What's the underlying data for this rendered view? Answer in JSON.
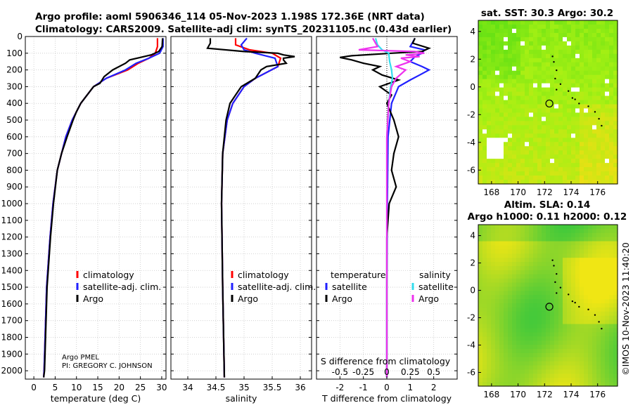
{
  "header": {
    "title_line1": "Argo profile: aoml 5906346_114 05-Nov-2023 1.198S 172.36E (NRT data)",
    "title_line2": "Climatology: CARS2009. Satellite-adj clim: synTS_20231105.nc (0.43d earlier)"
  },
  "colors": {
    "argo": "#000000",
    "climatology": "#ff0000",
    "satellite": "#2020ff",
    "satellite_s": "#33ddee",
    "argo_s": "#ee33ee"
  },
  "chart_data": [
    {
      "type": "line",
      "id": "temperature",
      "xlabel": "temperature (deg C)",
      "ylabel": "",
      "xlim": [
        -2,
        31
      ],
      "ylim": [
        2050,
        0
      ],
      "grid": true,
      "xticks": [
        0,
        5,
        10,
        15,
        20,
        25,
        30
      ],
      "yticks": [
        0,
        100,
        200,
        300,
        400,
        500,
        600,
        700,
        800,
        900,
        1000,
        1100,
        1200,
        1300,
        1400,
        1500,
        1600,
        1700,
        1800,
        1900,
        2000
      ],
      "legend": [
        "climatology",
        "satellite-adj. clim.",
        "Argo"
      ],
      "series": [
        {
          "name": "climatology",
          "depth": [
            10,
            60,
            100,
            130,
            160,
            200,
            250,
            300,
            400,
            500,
            600,
            800,
            1000,
            1200,
            1500,
            2000,
            2040
          ],
          "values": [
            29.0,
            29.0,
            28.5,
            27.0,
            24.5,
            22.0,
            17.0,
            14.0,
            11.0,
            9.0,
            7.5,
            5.5,
            4.5,
            3.8,
            3.0,
            2.4,
            2.3
          ]
        },
        {
          "name": "satellite-adj. clim.",
          "depth": [
            10,
            60,
            100,
            130,
            160,
            200,
            250,
            300,
            400,
            500,
            600,
            800,
            1000,
            1200,
            1500,
            2000,
            2040
          ],
          "values": [
            30.3,
            30.3,
            29.5,
            27.0,
            24.0,
            21.5,
            17.0,
            14.0,
            11.0,
            9.0,
            7.5,
            5.5,
            4.5,
            3.8,
            3.0,
            2.4,
            2.3
          ]
        },
        {
          "name": "Argo",
          "depth": [
            10,
            60,
            90,
            110,
            125,
            140,
            160,
            200,
            240,
            280,
            300,
            350,
            400,
            450,
            500,
            600,
            700,
            800,
            1000,
            1200,
            1500,
            2000,
            2040
          ],
          "values": [
            30.2,
            30.1,
            29.3,
            27.5,
            25.0,
            22.5,
            21.5,
            18.5,
            16.5,
            15.5,
            14.0,
            12.5,
            11.0,
            10.0,
            9.2,
            7.8,
            6.5,
            5.5,
            4.6,
            3.9,
            3.1,
            2.5,
            2.3
          ]
        }
      ]
    },
    {
      "type": "line",
      "id": "salinity",
      "xlabel": "salinity",
      "ylabel": "",
      "xlim": [
        33.7,
        36.2
      ],
      "ylim": [
        2050,
        0
      ],
      "grid": true,
      "xticks": [
        34,
        34.5,
        35,
        35.5,
        36
      ],
      "legend": [
        "climatology",
        "satellite-adj. clim.",
        "Argo"
      ],
      "series": [
        {
          "name": "climatology",
          "depth": [
            10,
            50,
            80,
            100,
            130,
            180,
            250,
            300,
            400,
            500,
            700,
            1000,
            1500,
            2040
          ],
          "values": [
            34.85,
            34.85,
            35.1,
            35.5,
            35.65,
            35.6,
            35.2,
            35.0,
            34.8,
            34.7,
            34.62,
            34.6,
            34.62,
            34.65
          ]
        },
        {
          "name": "satellite-adj. clim.",
          "depth": [
            10,
            50,
            80,
            100,
            130,
            180,
            250,
            300,
            400,
            500,
            700,
            1000,
            1500,
            2040
          ],
          "values": [
            35.05,
            34.95,
            35.0,
            35.2,
            35.55,
            35.6,
            35.2,
            35.0,
            34.8,
            34.7,
            34.62,
            34.6,
            34.62,
            34.65
          ]
        },
        {
          "name": "Argo",
          "depth": [
            10,
            40,
            70,
            90,
            100,
            110,
            120,
            130,
            140,
            160,
            180,
            200,
            250,
            300,
            350,
            400,
            500,
            700,
            1000,
            1500,
            2040
          ],
          "values": [
            34.4,
            34.4,
            34.35,
            35.0,
            35.6,
            35.7,
            35.9,
            35.7,
            35.7,
            35.75,
            35.4,
            35.3,
            35.2,
            34.95,
            34.85,
            34.75,
            34.68,
            34.62,
            34.6,
            34.62,
            34.65
          ]
        }
      ]
    },
    {
      "type": "line",
      "id": "differences",
      "xlabel": "T difference from climatology",
      "xlabel_top": "S difference from climatology",
      "xlim": [
        -3,
        3
      ],
      "ylim": [
        2050,
        0
      ],
      "grid": true,
      "xticks": [
        -2,
        -1,
        0,
        1,
        2
      ],
      "xticks_top": [
        -0.5,
        -0.25,
        0,
        0.25,
        0.5
      ],
      "legend_titles": [
        "temperature",
        "salinity"
      ],
      "legend": [
        "satellite",
        "Argo",
        "satellite",
        "Argo"
      ],
      "series": [
        {
          "name": "temperature satellite",
          "depth": [
            10,
            60,
            80,
            100,
            120,
            150,
            180,
            200,
            230,
            260,
            300,
            400,
            600,
            1000,
            1500,
            2040
          ],
          "values": [
            1.2,
            1.0,
            1.6,
            1.5,
            1.2,
            1.0,
            1.5,
            1.8,
            1.4,
            1.0,
            0.5,
            0.2,
            0.05,
            0.02,
            0.0,
            0.0
          ]
        },
        {
          "name": "temperature Argo",
          "depth": [
            10,
            40,
            70,
            90,
            100,
            115,
            125,
            140,
            160,
            180,
            200,
            230,
            260,
            300,
            350,
            400,
            500,
            600,
            700,
            800,
            900,
            1000,
            1200,
            1500,
            2040
          ],
          "values": [
            1.2,
            1.1,
            1.8,
            1.5,
            0.2,
            -1.5,
            -2.0,
            -1.5,
            -1.0,
            -0.3,
            -0.6,
            -0.2,
            0.5,
            -0.3,
            0.2,
            0.0,
            0.3,
            0.5,
            0.3,
            0.2,
            0.4,
            0.1,
            0.0,
            0.0,
            0.0
          ]
        },
        {
          "name": "salinity satellite",
          "depth": [
            10,
            50,
            80,
            100,
            150,
            200,
            250,
            300,
            400,
            600,
            1000,
            1500,
            2040
          ],
          "values": [
            -0.12,
            -0.1,
            -0.05,
            0.02,
            0.03,
            0.05,
            0.06,
            0.04,
            0.02,
            0.0,
            0.0,
            0.0,
            0.0
          ]
        },
        {
          "name": "salinity Argo",
          "depth": [
            10,
            60,
            80,
            90,
            100,
            110,
            120,
            130,
            150,
            180,
            200,
            250,
            300,
            400,
            600,
            1000,
            1500,
            2040
          ],
          "values": [
            -0.15,
            -0.1,
            -0.3,
            0.3,
            0.4,
            0.2,
            0.35,
            0.15,
            0.25,
            0.1,
            0.2,
            0.1,
            0.05,
            0.02,
            0.0,
            0.0,
            0.0,
            0.0
          ]
        }
      ]
    },
    {
      "type": "heatmap",
      "id": "sst_map",
      "title": "sat. SST: 30.3 Argo: 30.2",
      "xlim": [
        167,
        177.5
      ],
      "ylim": [
        -7,
        4.8
      ],
      "xticks": [
        168,
        170,
        172,
        174,
        176
      ],
      "yticks": [
        -6,
        -4,
        -2,
        0,
        2,
        4
      ],
      "marker": {
        "lon": 172.36,
        "lat": -1.198
      }
    },
    {
      "type": "heatmap",
      "id": "sla_map",
      "title": "Altim. SLA: 0.14",
      "subtitle": "Argo h1000: 0.11 h2000: 0.12",
      "xlim": [
        167,
        177.5
      ],
      "ylim": [
        -7,
        4.8
      ],
      "xticks": [
        168,
        170,
        172,
        174,
        176
      ],
      "yticks": [
        -6,
        -4,
        -2,
        0,
        2,
        4
      ],
      "marker": {
        "lon": 172.36,
        "lat": -1.198
      }
    }
  ],
  "credit": {
    "line1": "Argo PMEL",
    "line2": "PI: GREGORY C. JOHNSON"
  },
  "side_text": "©IMOS 10-Nov-2023 11:40:20"
}
